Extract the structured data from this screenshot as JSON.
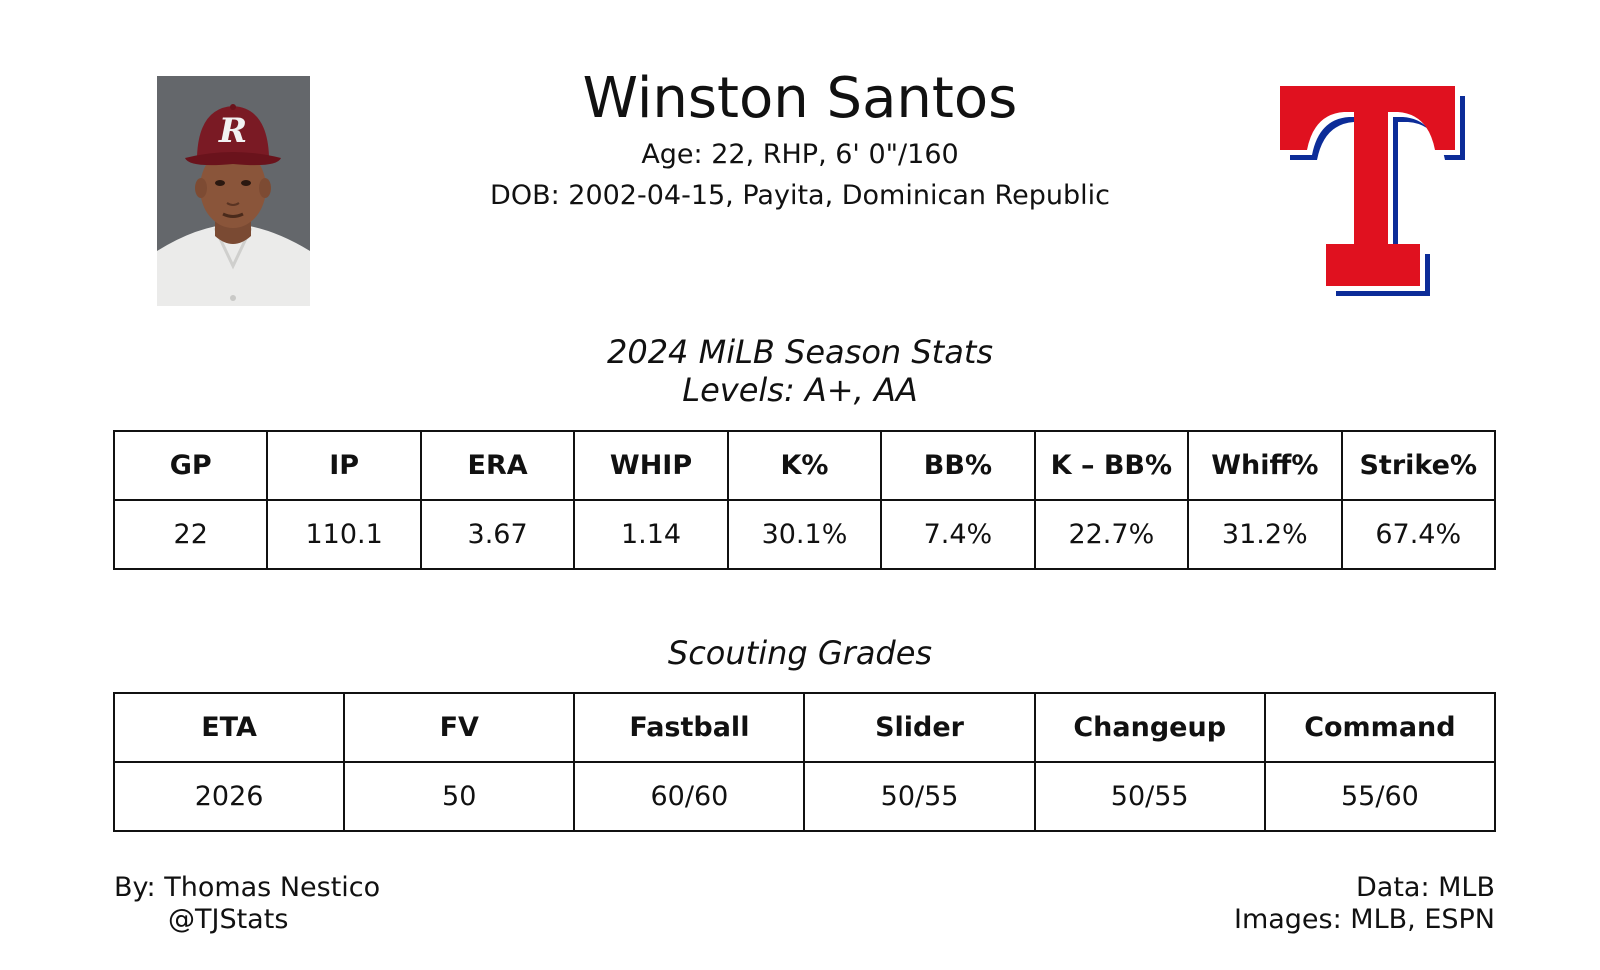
{
  "player": {
    "name": "Winston Santos",
    "bio_line": "Age: 22, RHP, 6' 0\"/160",
    "dob_line": "DOB: 2002-04-15, Payita, Dominican Republic",
    "photo_icon": "player-headshot-photo",
    "cap_letter": "R"
  },
  "team_logo": {
    "icon": "rangers-t-logo",
    "colors": {
      "red": "#E0111F",
      "blue": "#0C2C98",
      "white": "#ffffff"
    }
  },
  "season_stats": {
    "title": "2024 MiLB Season Stats",
    "subtitle": "Levels: A+, AA",
    "headers": [
      "GP",
      "IP",
      "ERA",
      "WHIP",
      "K%",
      "BB%",
      "K – BB%",
      "Whiff%",
      "Strike%"
    ],
    "values": [
      "22",
      "110.1",
      "3.67",
      "1.14",
      "30.1%",
      "7.4%",
      "22.7%",
      "31.2%",
      "67.4%"
    ]
  },
  "scouting_grades": {
    "title": "Scouting Grades",
    "headers": [
      "ETA",
      "FV",
      "Fastball",
      "Slider",
      "Changeup",
      "Command"
    ],
    "values": [
      "2026",
      "50",
      "60/60",
      "50/55",
      "50/55",
      "55/60"
    ]
  },
  "footer": {
    "by_line": "By: Thomas Nestico",
    "handle": "@TJStats",
    "data_line": "Data: MLB",
    "images_line": "Images: MLB, ESPN"
  }
}
